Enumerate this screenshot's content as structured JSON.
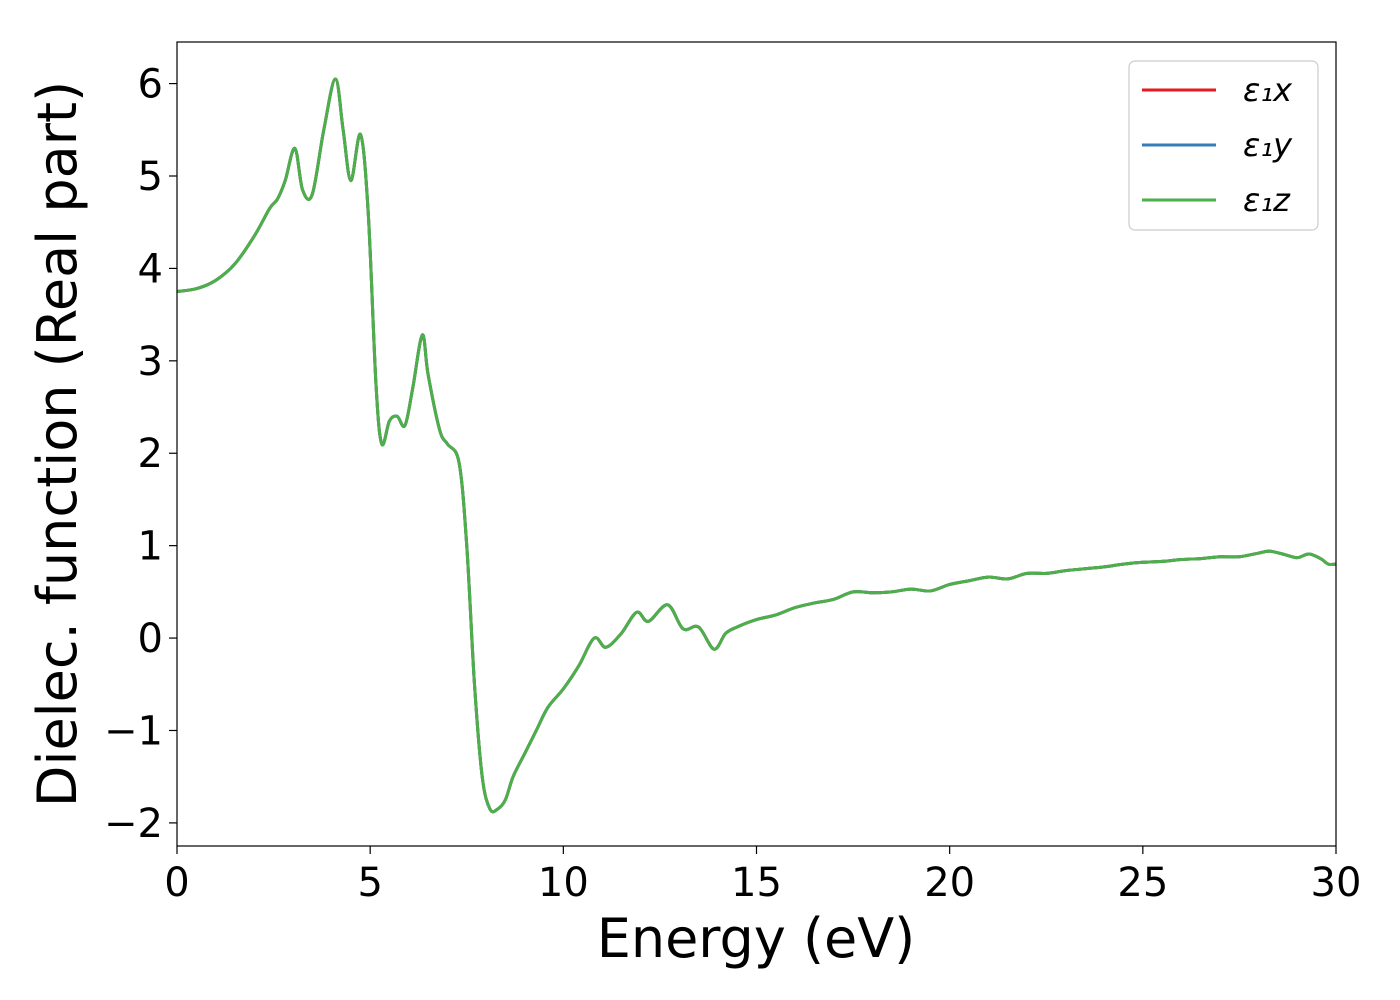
{
  "chart_data": {
    "type": "line",
    "title": "",
    "xlabel": "Energy (eV)",
    "ylabel": "Dielec. function (Real part)",
    "xlim": [
      0,
      30
    ],
    "ylim": [
      -2.25,
      6.45
    ],
    "xticks": [
      0,
      5,
      10,
      15,
      20,
      25,
      30
    ],
    "xtick_labels": [
      "0",
      "5",
      "10",
      "15",
      "20",
      "25",
      "30"
    ],
    "yticks": [
      -2,
      -1,
      0,
      1,
      2,
      3,
      4,
      5,
      6
    ],
    "ytick_labels": [
      "−2",
      "−1",
      "0",
      "1",
      "2",
      "3",
      "4",
      "5",
      "6"
    ],
    "grid": false,
    "legend_position": "top-right",
    "x": [
      0,
      0.5,
      1.0,
      1.5,
      2.0,
      2.4,
      2.6,
      2.8,
      3.05,
      3.25,
      3.5,
      3.8,
      4.1,
      4.3,
      4.5,
      4.75,
      4.95,
      5.15,
      5.3,
      5.5,
      5.7,
      5.9,
      6.1,
      6.35,
      6.5,
      6.8,
      7.0,
      7.3,
      7.5,
      7.7,
      7.9,
      8.1,
      8.3,
      8.5,
      8.7,
      9.0,
      9.3,
      9.6,
      10.0,
      10.4,
      10.8,
      11.1,
      11.5,
      11.9,
      12.2,
      12.7,
      13.1,
      13.5,
      13.9,
      14.2,
      14.5,
      15.0,
      15.5,
      16.0,
      16.5,
      17.0,
      17.5,
      18.0,
      18.5,
      19.0,
      19.5,
      20.0,
      20.5,
      21.0,
      21.5,
      22.0,
      22.5,
      23.0,
      23.5,
      24.0,
      24.5,
      25.0,
      25.5,
      26.0,
      26.5,
      27.0,
      27.5,
      28.0,
      28.3,
      28.7,
      29.0,
      29.3,
      29.6,
      29.8,
      30.0
    ],
    "series": [
      {
        "name": "ε₁x",
        "color": "#e41a1c",
        "values": [
          3.75,
          3.78,
          3.87,
          4.05,
          4.35,
          4.65,
          4.75,
          4.95,
          5.3,
          4.85,
          4.8,
          5.5,
          6.05,
          5.5,
          4.95,
          5.45,
          4.6,
          2.75,
          2.1,
          2.35,
          2.4,
          2.3,
          2.7,
          3.28,
          2.85,
          2.25,
          2.1,
          1.9,
          1.0,
          -0.5,
          -1.5,
          -1.85,
          -1.85,
          -1.75,
          -1.5,
          -1.25,
          -1.0,
          -0.75,
          -0.55,
          -0.3,
          0.0,
          -0.1,
          0.05,
          0.28,
          0.18,
          0.36,
          0.1,
          0.12,
          -0.12,
          0.05,
          0.12,
          0.2,
          0.25,
          0.33,
          0.38,
          0.42,
          0.5,
          0.49,
          0.5,
          0.53,
          0.51,
          0.58,
          0.62,
          0.66,
          0.64,
          0.7,
          0.7,
          0.73,
          0.75,
          0.77,
          0.8,
          0.82,
          0.83,
          0.85,
          0.86,
          0.88,
          0.88,
          0.92,
          0.94,
          0.9,
          0.87,
          0.91,
          0.86,
          0.8,
          0.8
        ]
      },
      {
        "name": "ε₁y",
        "color": "#377eb8",
        "values": [
          3.75,
          3.78,
          3.87,
          4.05,
          4.35,
          4.65,
          4.75,
          4.95,
          5.3,
          4.85,
          4.8,
          5.5,
          6.05,
          5.5,
          4.95,
          5.45,
          4.6,
          2.75,
          2.1,
          2.35,
          2.4,
          2.3,
          2.7,
          3.28,
          2.85,
          2.25,
          2.1,
          1.9,
          1.0,
          -0.5,
          -1.5,
          -1.85,
          -1.85,
          -1.75,
          -1.5,
          -1.25,
          -1.0,
          -0.75,
          -0.55,
          -0.3,
          0.0,
          -0.1,
          0.05,
          0.28,
          0.18,
          0.36,
          0.1,
          0.12,
          -0.12,
          0.05,
          0.12,
          0.2,
          0.25,
          0.33,
          0.38,
          0.42,
          0.5,
          0.49,
          0.5,
          0.53,
          0.51,
          0.58,
          0.62,
          0.66,
          0.64,
          0.7,
          0.7,
          0.73,
          0.75,
          0.77,
          0.8,
          0.82,
          0.83,
          0.85,
          0.86,
          0.88,
          0.88,
          0.92,
          0.94,
          0.9,
          0.87,
          0.91,
          0.86,
          0.8,
          0.8
        ]
      },
      {
        "name": "ε₁z",
        "color": "#4daf4a",
        "values": [
          3.75,
          3.78,
          3.87,
          4.05,
          4.35,
          4.65,
          4.75,
          4.95,
          5.3,
          4.85,
          4.8,
          5.5,
          6.05,
          5.5,
          4.95,
          5.45,
          4.6,
          2.75,
          2.1,
          2.35,
          2.4,
          2.3,
          2.7,
          3.28,
          2.85,
          2.25,
          2.1,
          1.9,
          1.0,
          -0.5,
          -1.5,
          -1.85,
          -1.85,
          -1.75,
          -1.5,
          -1.25,
          -1.0,
          -0.75,
          -0.55,
          -0.3,
          0.0,
          -0.1,
          0.05,
          0.28,
          0.18,
          0.36,
          0.1,
          0.12,
          -0.12,
          0.05,
          0.12,
          0.2,
          0.25,
          0.33,
          0.38,
          0.42,
          0.5,
          0.49,
          0.5,
          0.53,
          0.51,
          0.58,
          0.62,
          0.66,
          0.64,
          0.7,
          0.7,
          0.73,
          0.75,
          0.77,
          0.8,
          0.82,
          0.83,
          0.85,
          0.86,
          0.88,
          0.88,
          0.92,
          0.94,
          0.9,
          0.87,
          0.91,
          0.86,
          0.8,
          0.8
        ]
      }
    ]
  }
}
